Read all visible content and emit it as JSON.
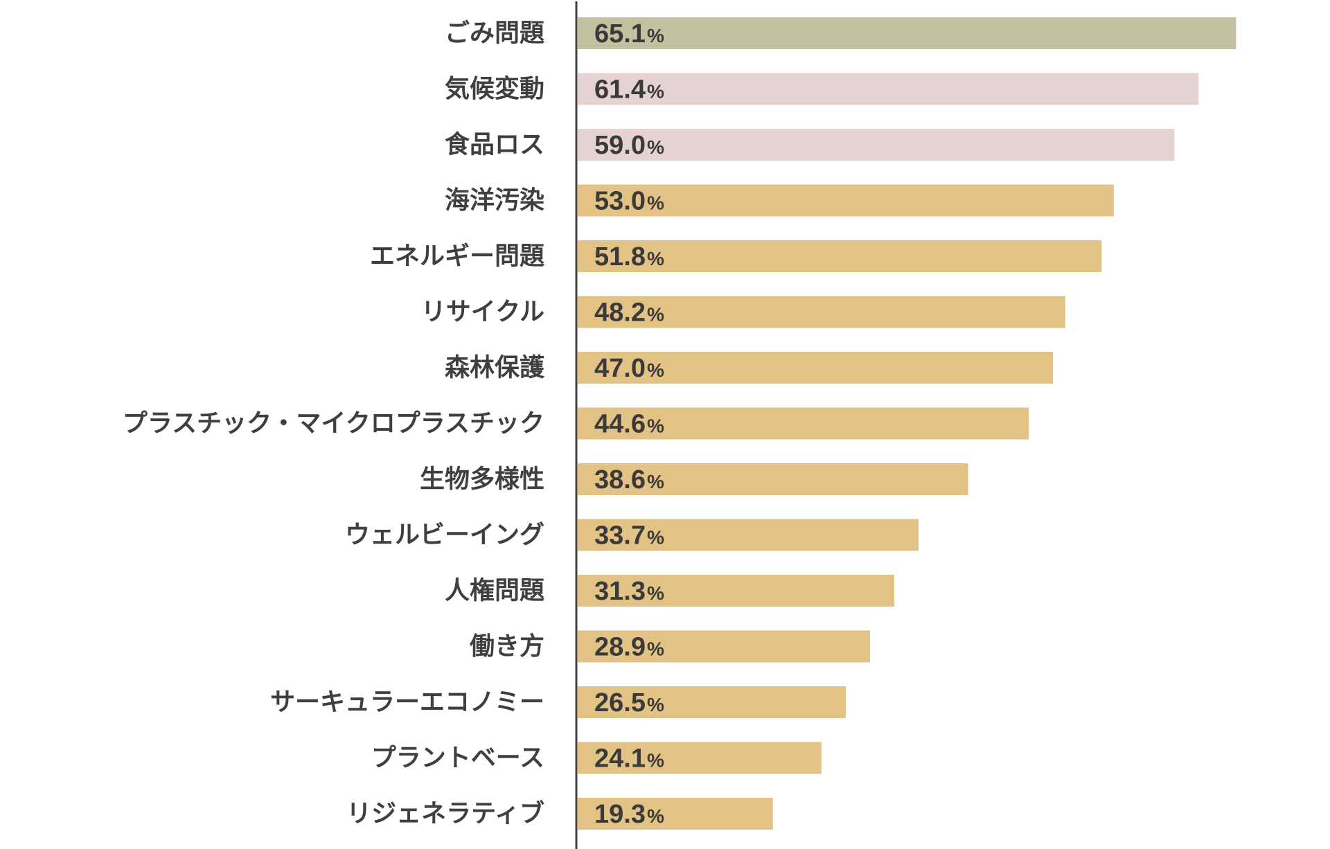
{
  "chart_data": {
    "type": "bar",
    "orientation": "horizontal",
    "title": "",
    "xlabel": "",
    "ylabel": "",
    "xlim": [
      0,
      70
    ],
    "grid": false,
    "legend": "none",
    "unit_suffix": "%",
    "categories": [
      "ごみ問題",
      "気候変動",
      "食品ロス",
      "海洋汚染",
      "エネルギー問題",
      "リサイクル",
      "森林保護",
      "プラスチック・マイクロプラスチック",
      "生物多様性",
      "ウェルビーイング",
      "人権問題",
      "働き方",
      "サーキュラーエコノミー",
      "プラントベース",
      "リジェネラティブ"
    ],
    "values": [
      65.1,
      61.4,
      59.0,
      53.0,
      51.8,
      48.2,
      47.0,
      44.6,
      38.6,
      33.7,
      31.3,
      28.9,
      26.5,
      24.1,
      19.3
    ],
    "value_labels": [
      "65.1",
      "61.4",
      "59.0",
      "53.0",
      "51.8",
      "48.2",
      "47.0",
      "44.6",
      "38.6",
      "33.7",
      "31.3",
      "28.9",
      "26.5",
      "24.1",
      "19.3"
    ],
    "bar_colors": [
      "#c2c2a0",
      "#e4d3d2",
      "#e4d3d2",
      "#e2c285",
      "#e2c285",
      "#e2c285",
      "#e2c285",
      "#e2c285",
      "#e2c285",
      "#e2c285",
      "#e2c285",
      "#e2c285",
      "#e2c285",
      "#e2c285",
      "#e2c285"
    ],
    "axis_color": "#3f3f3f",
    "text_color": "#3f3f3f"
  }
}
